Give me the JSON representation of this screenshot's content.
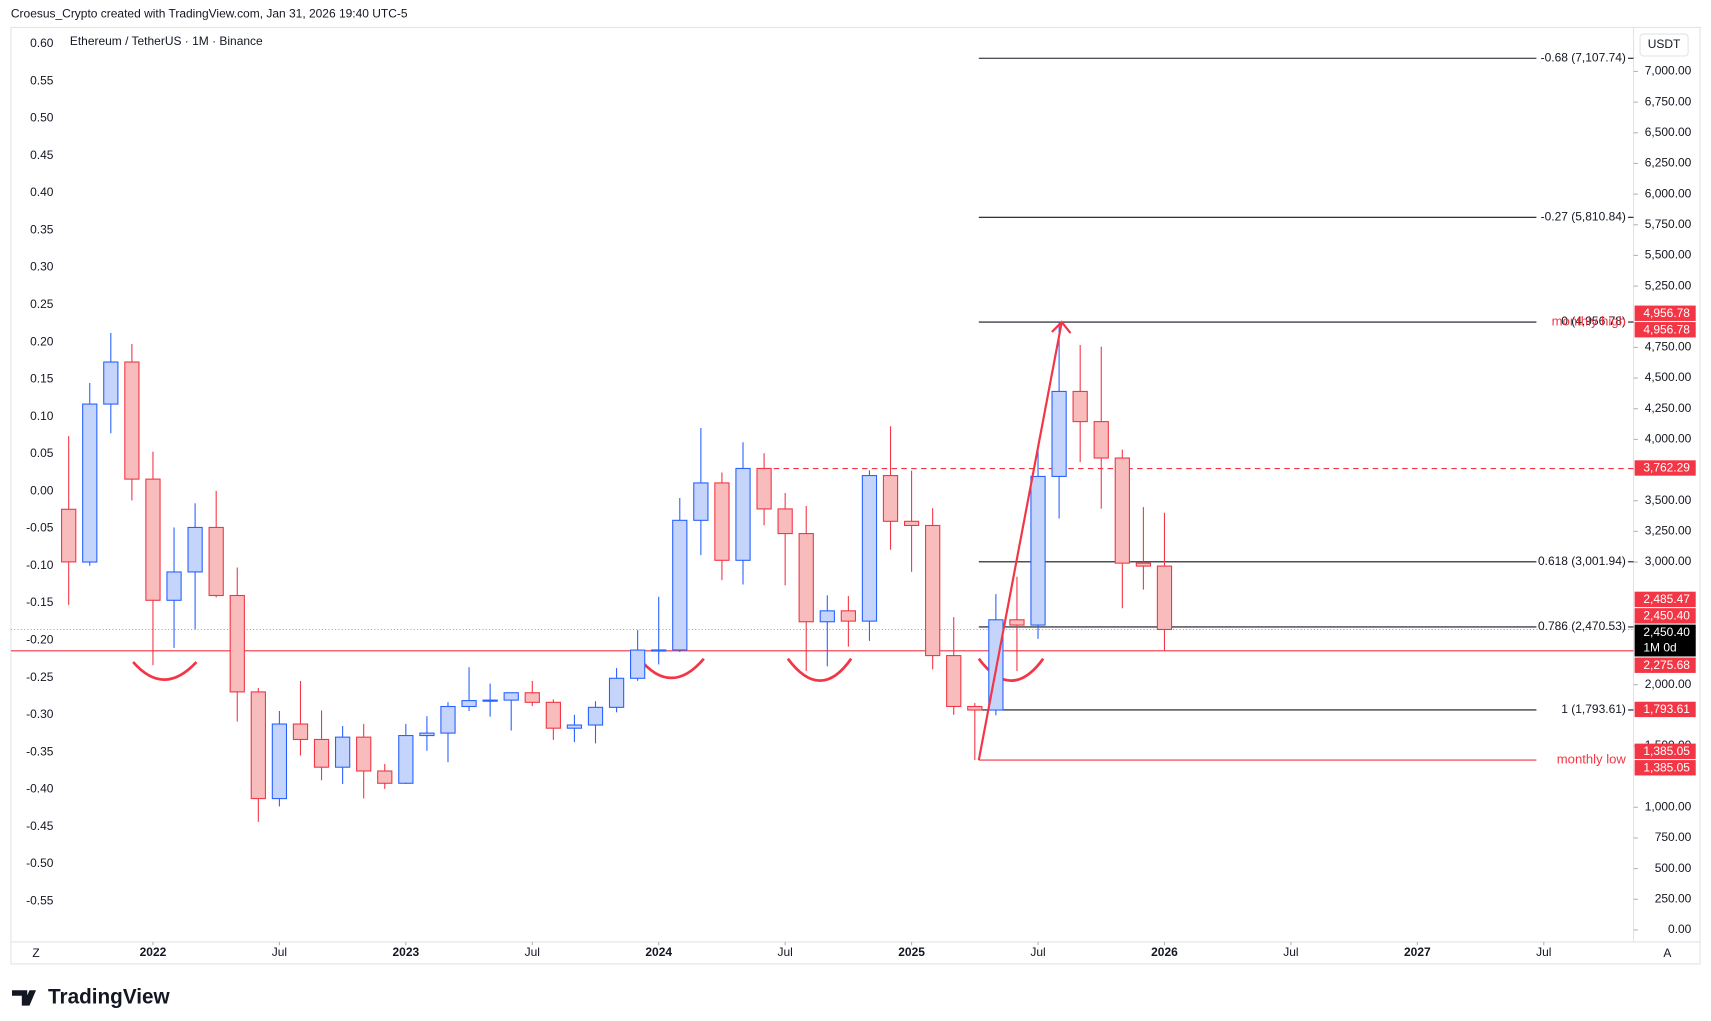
{
  "header": "Croesus_Crypto created with TradingView.com, Jan 31, 2026 19:40 UTC-5",
  "brand": "TradingView",
  "chart_data": {
    "type": "candlestick",
    "title": "Ethereum / TetherUS · 1M · Binance",
    "currency": "USDT",
    "scale_buttons": [
      "Z",
      "A"
    ],
    "x": [
      "2021-09",
      "2021-10",
      "2021-11",
      "2021-12",
      "2022-01",
      "2022-02",
      "2022-03",
      "2022-04",
      "2022-05",
      "2022-06",
      "2022-07",
      "2022-08",
      "2022-09",
      "2022-10",
      "2022-11",
      "2022-12",
      "2023-01",
      "2023-02",
      "2023-03",
      "2023-04",
      "2023-05",
      "2023-06",
      "2023-07",
      "2023-08",
      "2023-09",
      "2023-10",
      "2023-11",
      "2023-12",
      "2024-01",
      "2024-02",
      "2024-03",
      "2024-04",
      "2024-05",
      "2024-06",
      "2024-07",
      "2024-08",
      "2024-09",
      "2024-10",
      "2024-11",
      "2024-12",
      "2025-01",
      "2025-02",
      "2025-03",
      "2025-04",
      "2025-05",
      "2025-06",
      "2025-07",
      "2025-08",
      "2025-09",
      "2025-10",
      "2025-11",
      "2025-12",
      "2026-01"
    ],
    "open": [
      3430,
      3000,
      4288,
      4631,
      3676,
      2688,
      2919,
      3282,
      2727,
      1941,
      1071,
      1679,
      1553,
      1327,
      1572,
      1296,
      1196,
      1585,
      1605,
      1822,
      1870,
      1874,
      1934,
      1856,
      1645,
      1671,
      1815,
      2052,
      2282,
      2283,
      3340,
      3645,
      3014,
      3763,
      3433,
      3232,
      2513,
      2602,
      2518,
      3705,
      3332,
      3298,
      2237,
      1822,
      1793,
      2529,
      2486,
      3698,
      4391,
      4145,
      3848,
      2991,
      2967
    ],
    "high": [
      4027,
      4460,
      4868,
      4778,
      3900,
      3282,
      3479,
      3580,
      2955,
      1973,
      1785,
      2030,
      1790,
      1663,
      1680,
      1353,
      1680,
      1743,
      1857,
      2142,
      2009,
      1930,
      2030,
      1880,
      1754,
      1865,
      2135,
      2445,
      2717,
      3522,
      4093,
      3730,
      3977,
      3887,
      3563,
      3457,
      2728,
      2722,
      3747,
      4107,
      3745,
      3438,
      2551,
      1850,
      2738,
      2880,
      3941,
      4957,
      4770,
      4756,
      3917,
      3448,
      3402
    ],
    "low": [
      2651,
      2970,
      4050,
      3503,
      2159,
      2300,
      2450,
      2711,
      1700,
      881,
      1007,
      1422,
      1220,
      1190,
      1073,
      1150,
      1190,
      1461,
      1368,
      1785,
      1739,
      1626,
      1825,
      1550,
      1531,
      1521,
      1775,
      2031,
      2165,
      2266,
      3056,
      2852,
      2817,
      3300,
      2810,
      2111,
      2150,
      2310,
      2357,
      3100,
      2920,
      2125,
      1754,
      1385,
      1751,
      2111,
      2373,
      3355,
      3815,
      3435,
      2623,
      2775,
      2275
    ],
    "close": [
      3001,
      4288,
      4631,
      3676,
      2688,
      2919,
      3282,
      2727,
      1941,
      1071,
      1679,
      1553,
      1327,
      1572,
      1296,
      1196,
      1585,
      1605,
      1822,
      1870,
      1874,
      1934,
      1856,
      1645,
      1671,
      1815,
      2052,
      2282,
      2283,
      3340,
      3645,
      3014,
      3763,
      3433,
      3232,
      2513,
      2602,
      2518,
      3705,
      3332,
      3298,
      2237,
      1822,
      1793,
      2529,
      2486,
      3698,
      4391,
      4145,
      3848,
      2991,
      2967,
      2450
    ],
    "up_color": "#2962ff",
    "up_fill": "#c5d4fb",
    "down_color": "#f23645",
    "down_fill": "#f8bcbc",
    "xlim": [
      "2021-06",
      "2027-11"
    ],
    "xticks": [
      {
        "value": "2022-01",
        "label": "2022"
      },
      {
        "value": "2022-07",
        "label": "Jul"
      },
      {
        "value": "2023-01",
        "label": "2023"
      },
      {
        "value": "2023-07",
        "label": "Jul"
      },
      {
        "value": "2024-01",
        "label": "2024"
      },
      {
        "value": "2024-07",
        "label": "Jul"
      },
      {
        "value": "2025-01",
        "label": "2025"
      },
      {
        "value": "2025-07",
        "label": "Jul"
      },
      {
        "value": "2026-01",
        "label": "2026"
      },
      {
        "value": "2026-07",
        "label": "Jul"
      },
      {
        "value": "2027-01",
        "label": "2027"
      },
      {
        "value": "2027-07",
        "label": "Jul"
      }
    ],
    "ylim": [
      -98,
      7359
    ],
    "yticks": [
      {
        "value": 7000,
        "label": "7,000.00"
      },
      {
        "value": 6750,
        "label": "6,750.00"
      },
      {
        "value": 6500,
        "label": "6,500.00"
      },
      {
        "value": 6250,
        "label": "6,250.00"
      },
      {
        "value": 6000,
        "label": "6,000.00"
      },
      {
        "value": 5750,
        "label": "5,750.00"
      },
      {
        "value": 5500,
        "label": "5,500.00"
      },
      {
        "value": 5250,
        "label": "5,250.00"
      },
      {
        "value": 4750,
        "label": "4,750.00"
      },
      {
        "value": 4500,
        "label": "4,500.00"
      },
      {
        "value": 4250,
        "label": "4,250.00"
      },
      {
        "value": 4000,
        "label": "4,000.00"
      },
      {
        "value": 3500,
        "label": "3,500.00"
      },
      {
        "value": 3250,
        "label": "3,250.00"
      },
      {
        "value": 3000,
        "label": "3,000.00"
      },
      {
        "value": 2000,
        "label": "2,000.00"
      },
      {
        "value": 1500,
        "label": "1,500.00"
      },
      {
        "value": 1000,
        "label": "1,000.00"
      },
      {
        "value": 750,
        "label": "750.00"
      },
      {
        "value": 500,
        "label": "500.00"
      },
      {
        "value": 250,
        "label": "250.00"
      },
      {
        "value": 0,
        "label": "0.00"
      }
    ],
    "y2lim": [
      -0.6045,
      0.622
    ],
    "y2ticks": [
      {
        "value": 0.6,
        "label": "0.60"
      },
      0.55,
      {
        "value": 0.5,
        "label": "0.50"
      },
      0.45,
      {
        "value": 0.4,
        "label": "0.40"
      },
      0.35,
      {
        "value": 0.3,
        "label": "0.30"
      },
      0.25,
      {
        "value": 0.2,
        "label": "0.20"
      },
      0.15,
      {
        "value": 0.1,
        "label": "0.10"
      },
      0.05,
      {
        "value": 0,
        "label": "0.00"
      },
      -0.05,
      {
        "value": -0.1,
        "label": "-0.10"
      },
      -0.15,
      {
        "value": -0.2,
        "label": "-0.20"
      },
      -0.25,
      {
        "value": -0.3,
        "label": "-0.30"
      },
      -0.35,
      {
        "value": -0.4,
        "label": "-0.40"
      },
      -0.45,
      {
        "value": -0.5,
        "label": "-0.50"
      },
      -0.55
    ],
    "fib_levels": [
      {
        "label": "-0.68 (7,107.74)",
        "value": 7107.74
      },
      {
        "label": "-0.27 (5,810.84)",
        "value": 5810.84
      },
      {
        "label": "0 (4,956.78)",
        "value": 4956.78
      },
      {
        "label": "0.618 (3,001.94)",
        "value": 3001.94
      },
      {
        "label": "0.786 (2,470.53)",
        "value": 2470.53
      },
      {
        "label": "1 (1,793.61)",
        "value": 1793.61
      }
    ],
    "annotations": [
      {
        "text": "monthly high",
        "value": 4956.78
      },
      {
        "text": "monthly low",
        "value": 1385.05
      }
    ],
    "horizontal_lines": [
      {
        "value": 3762.29,
        "style": "dashed"
      },
      {
        "value": 2275.68,
        "style": "solid"
      },
      {
        "value": 2450.4,
        "style": "dotted"
      }
    ],
    "line_color": "#f23645",
    "price_labels": [
      {
        "value": 4956.78,
        "label": "4,956.78"
      },
      {
        "value": 4956.78,
        "label": "4,956.78"
      },
      {
        "value": 3762.29,
        "label": "3,762.29"
      },
      {
        "value": 2485.47,
        "label": "2,485.47"
      },
      {
        "value": 2450.4,
        "label": "2,450.40"
      },
      {
        "value": 2450.4,
        "label": "2,450.40",
        "countdown": "1M 0d",
        "color": "#000000"
      },
      {
        "value": 2275.68,
        "label": "2,275.68"
      },
      {
        "value": 1793.61,
        "label": "1,793.61"
      },
      {
        "value": 1385.05,
        "label": "1,385.05"
      },
      {
        "value": 1385.05,
        "label": "1,385.05"
      }
    ]
  }
}
